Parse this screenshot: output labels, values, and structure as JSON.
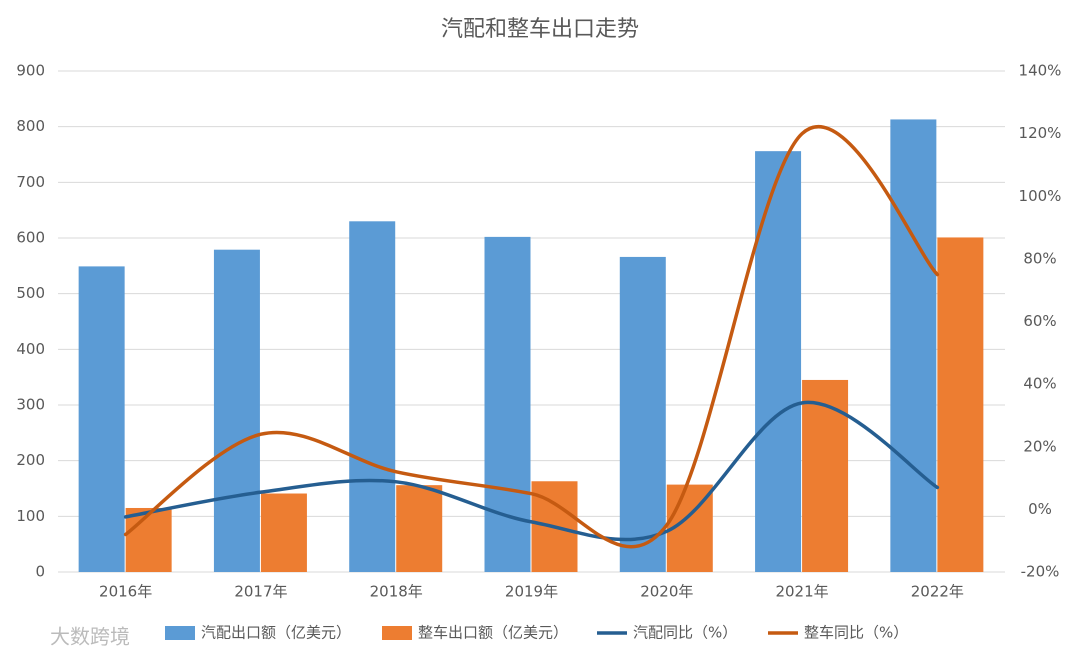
{
  "chart_data": {
    "type": "bar-line",
    "title": "汽配和整车出口走势",
    "watermark": "大数跨境",
    "categories": [
      "2016年",
      "2017年",
      "2018年",
      "2019年",
      "2020年",
      "2021年",
      "2022年"
    ],
    "series": [
      {
        "name": "汽配出口额（亿美元）",
        "type": "bar",
        "color": "#5b9bd5",
        "values": [
          549,
          579,
          630,
          602,
          566,
          756,
          813
        ]
      },
      {
        "name": "整车出口额（亿美元）",
        "type": "bar",
        "color": "#ed7d31",
        "values": [
          115,
          141,
          156,
          163,
          157,
          345,
          601
        ]
      },
      {
        "name": "汽配同比（%）",
        "type": "line",
        "axis": "y2",
        "color": "#255e91",
        "values": [
          -2.4,
          5.5,
          8.8,
          -4,
          -7,
          34,
          7
        ]
      },
      {
        "name": "整车同比（%）",
        "type": "line",
        "axis": "y2",
        "color": "#c55a11",
        "values": [
          -8,
          24,
          12,
          5,
          -5,
          120,
          75
        ]
      }
    ],
    "ylim": [
      0,
      900
    ],
    "yticks": [
      0,
      100,
      200,
      300,
      400,
      500,
      600,
      700,
      800,
      900
    ],
    "y2lim": [
      -20,
      140
    ],
    "y2ticks": [
      {
        "value": -20,
        "label": "-20%"
      },
      {
        "value": 0,
        "label": "0%"
      },
      {
        "value": 20,
        "label": "20%"
      },
      {
        "value": 40,
        "label": "40%"
      },
      {
        "value": 60,
        "label": "60%"
      },
      {
        "value": 80,
        "label": "80%"
      },
      {
        "value": 100,
        "label": "100%"
      },
      {
        "value": 120,
        "label": "120%"
      },
      {
        "value": 140,
        "label": "140%"
      }
    ],
    "grid": true,
    "legend": "bottom"
  }
}
